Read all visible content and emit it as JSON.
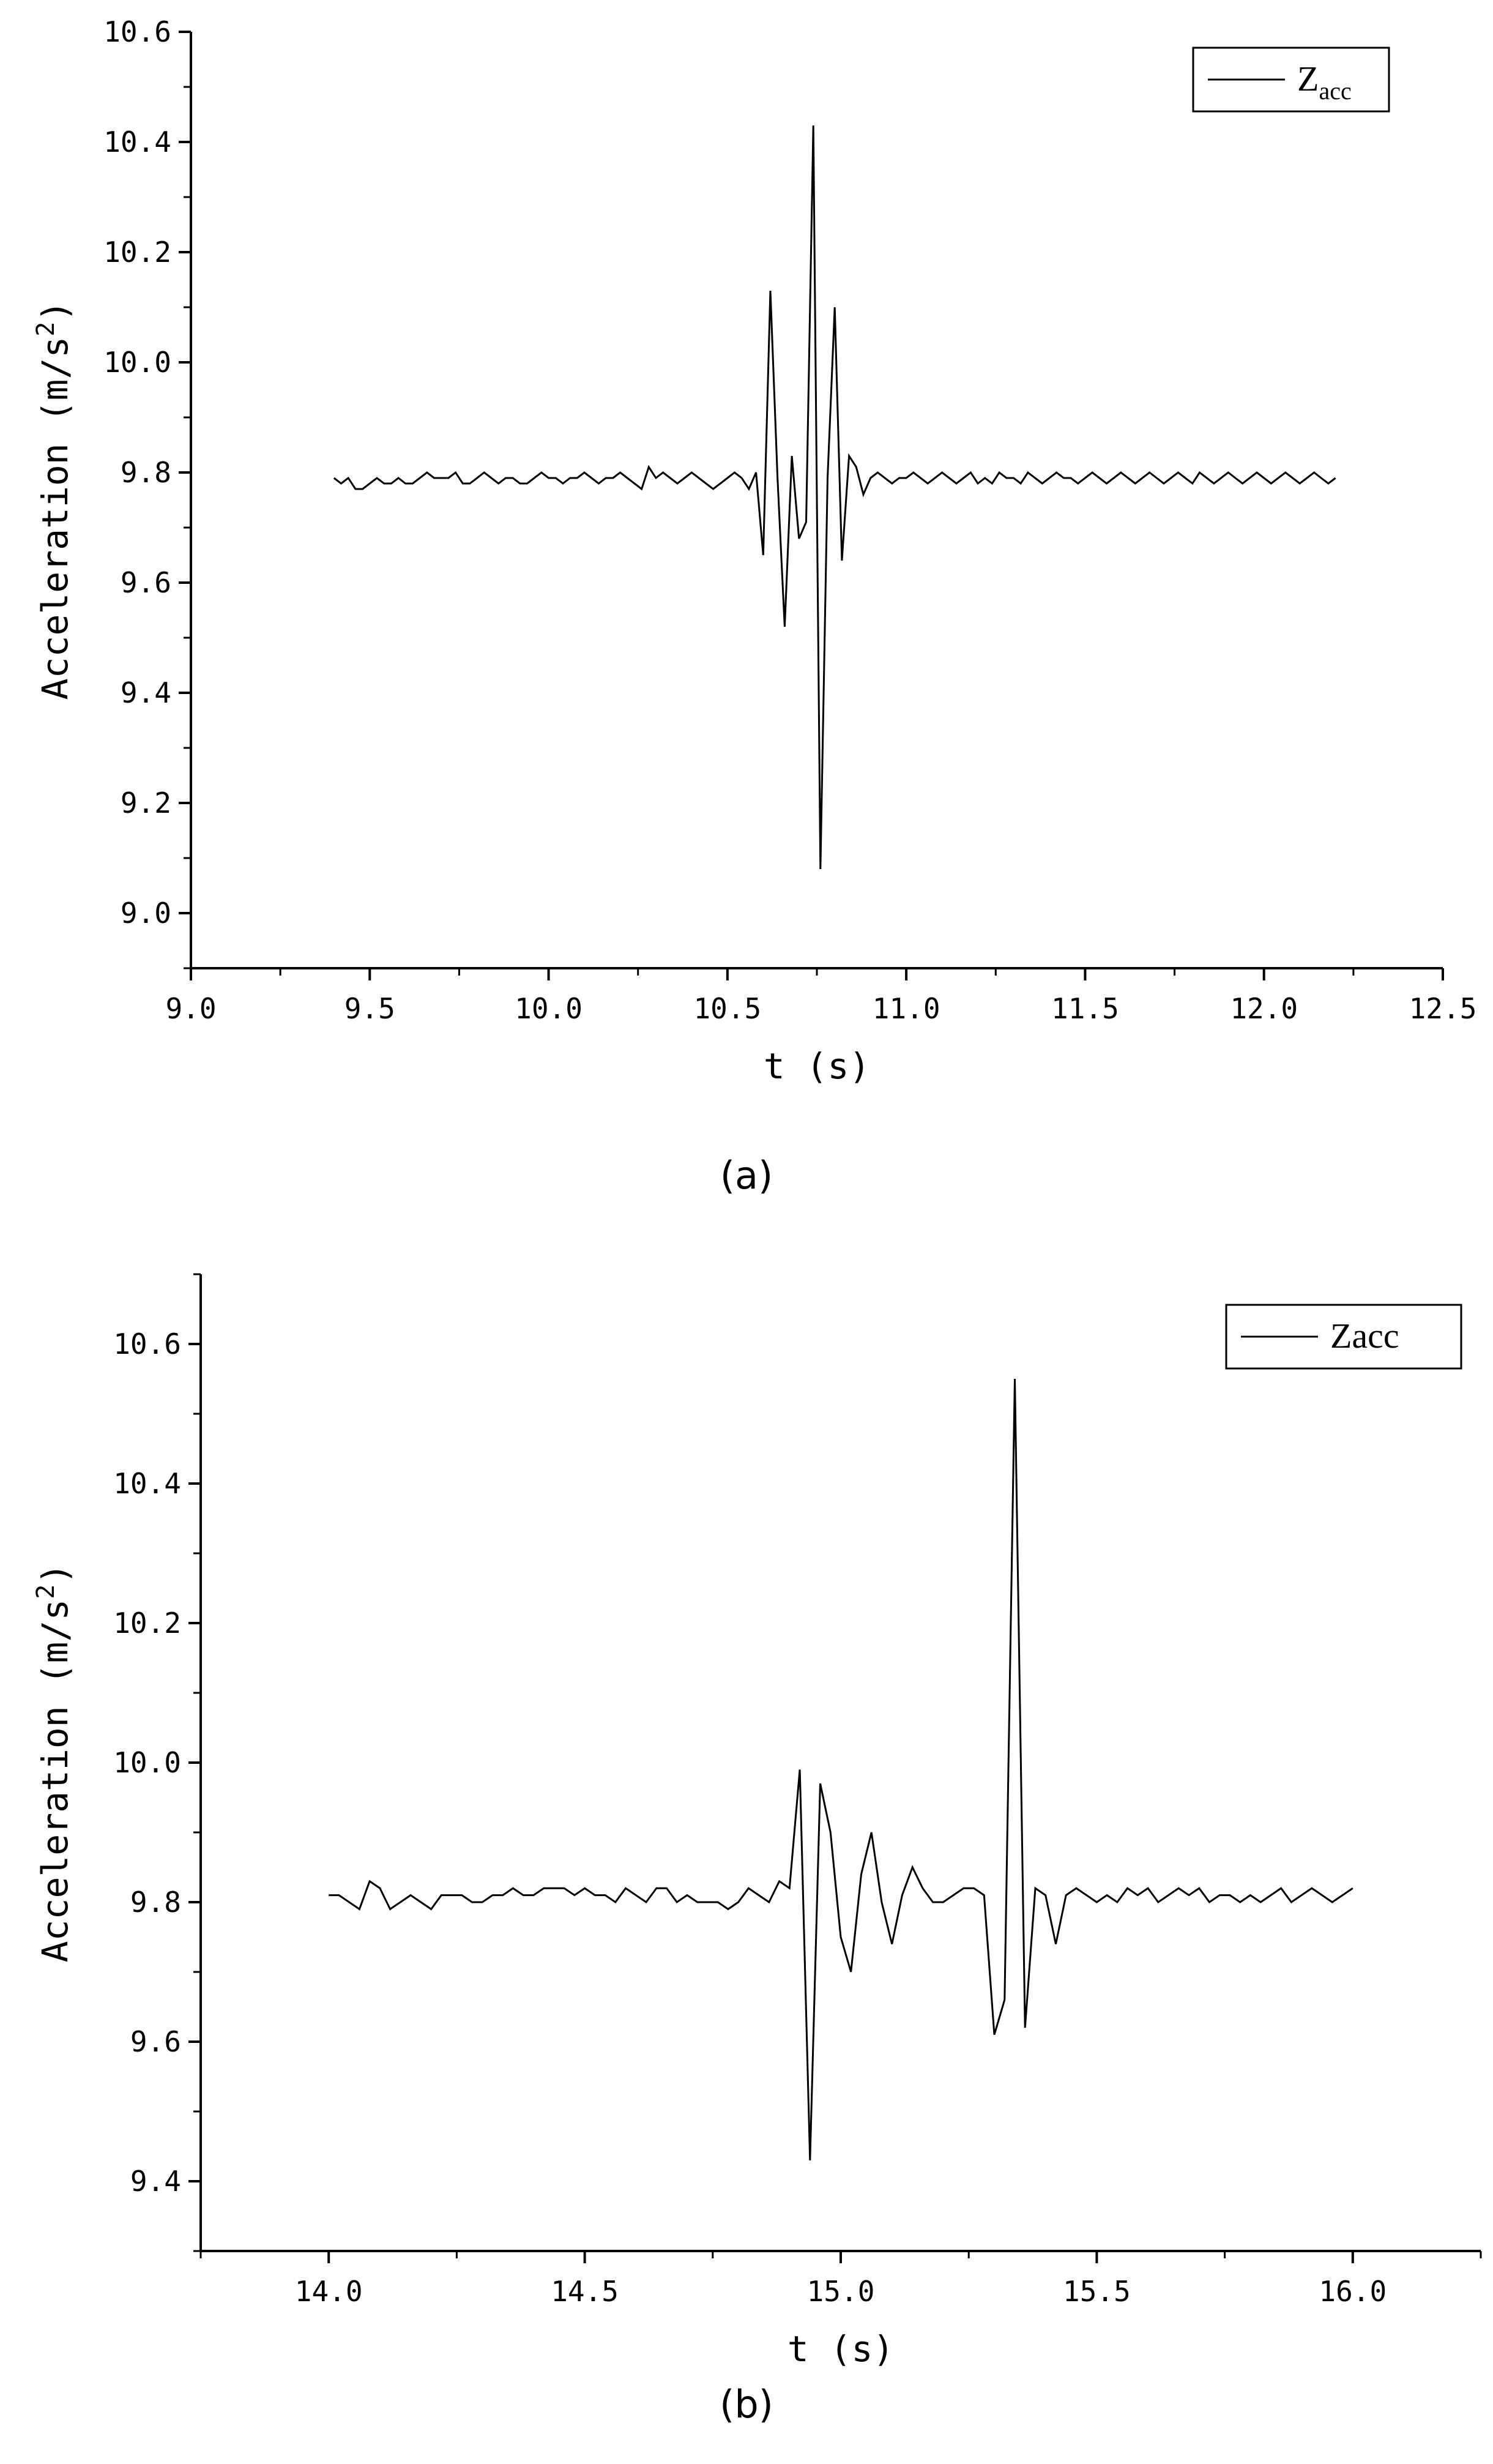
{
  "chart_data": [
    {
      "type": "line",
      "panel_label": "(a)",
      "xlabel": "t (s)",
      "ylabel": "Acceleration (m/s2)",
      "ylabel_main": "Acceleration (m/s",
      "ylabel_sup": "2",
      "ylabel_close": ")",
      "xlim": [
        9.0,
        12.5
      ],
      "ylim": [
        8.9,
        10.6
      ],
      "x_ticks": [
        "9.0",
        "9.5",
        "10.0",
        "10.5",
        "11.0",
        "11.5",
        "12.0",
        "12.5"
      ],
      "y_ticks": [
        "9.0",
        "9.2",
        "9.4",
        "9.6",
        "9.8",
        "10.0",
        "10.2",
        "10.4",
        "10.6"
      ],
      "grid": false,
      "legend_position": "top-right",
      "series": [
        {
          "name": "Zacc",
          "name_main": "Z",
          "name_sub": "acc",
          "color": "#000000",
          "x": [
            9.4,
            9.42,
            9.44,
            9.46,
            9.48,
            9.5,
            9.52,
            9.54,
            9.56,
            9.58,
            9.6,
            9.62,
            9.64,
            9.66,
            9.68,
            9.7,
            9.72,
            9.74,
            9.76,
            9.78,
            9.8,
            9.82,
            9.84,
            9.86,
            9.88,
            9.9,
            9.92,
            9.94,
            9.96,
            9.98,
            10.0,
            10.02,
            10.04,
            10.06,
            10.08,
            10.1,
            10.12,
            10.14,
            10.16,
            10.18,
            10.2,
            10.22,
            10.24,
            10.26,
            10.28,
            10.3,
            10.32,
            10.34,
            10.36,
            10.38,
            10.4,
            10.42,
            10.44,
            10.46,
            10.48,
            10.5,
            10.52,
            10.54,
            10.56,
            10.58,
            10.6,
            10.62,
            10.64,
            10.66,
            10.68,
            10.7,
            10.72,
            10.74,
            10.76,
            10.78,
            10.8,
            10.82,
            10.84,
            10.86,
            10.88,
            10.9,
            10.92,
            10.94,
            10.96,
            10.98,
            11.0,
            11.02,
            11.04,
            11.06,
            11.08,
            11.1,
            11.12,
            11.14,
            11.16,
            11.18,
            11.2,
            11.22,
            11.24,
            11.26,
            11.28,
            11.3,
            11.32,
            11.34,
            11.36,
            11.38,
            11.4,
            11.42,
            11.44,
            11.46,
            11.48,
            11.5,
            11.52,
            11.54,
            11.56,
            11.58,
            11.6,
            11.62,
            11.64,
            11.66,
            11.68,
            11.7,
            11.72,
            11.74,
            11.76,
            11.78,
            11.8,
            11.82,
            11.84,
            11.86,
            11.88,
            11.9,
            11.92,
            11.94,
            11.96,
            11.98,
            12.0,
            12.02,
            12.04,
            12.06,
            12.08,
            12.1,
            12.12,
            12.14,
            12.16,
            12.18,
            12.2
          ],
          "y": [
            9.79,
            9.78,
            9.79,
            9.77,
            9.77,
            9.78,
            9.79,
            9.78,
            9.78,
            9.79,
            9.78,
            9.78,
            9.79,
            9.8,
            9.79,
            9.79,
            9.79,
            9.8,
            9.78,
            9.78,
            9.79,
            9.8,
            9.79,
            9.78,
            9.79,
            9.79,
            9.78,
            9.78,
            9.79,
            9.8,
            9.79,
            9.79,
            9.78,
            9.79,
            9.79,
            9.8,
            9.79,
            9.78,
            9.79,
            9.79,
            9.8,
            9.79,
            9.78,
            9.77,
            9.81,
            9.79,
            9.8,
            9.79,
            9.78,
            9.79,
            9.8,
            9.79,
            9.78,
            9.77,
            9.78,
            9.79,
            9.8,
            9.79,
            9.77,
            9.8,
            9.65,
            10.13,
            9.79,
            9.52,
            9.83,
            9.68,
            9.71,
            10.43,
            9.08,
            9.79,
            10.1,
            9.64,
            9.83,
            9.81,
            9.76,
            9.79,
            9.8,
            9.79,
            9.78,
            9.79,
            9.79,
            9.8,
            9.79,
            9.78,
            9.79,
            9.8,
            9.79,
            9.78,
            9.79,
            9.8,
            9.78,
            9.79,
            9.78,
            9.8,
            9.79,
            9.79,
            9.78,
            9.8,
            9.79,
            9.78,
            9.79,
            9.8,
            9.79,
            9.79,
            9.78,
            9.79,
            9.8,
            9.79,
            9.78,
            9.79,
            9.8,
            9.79,
            9.78,
            9.79,
            9.8,
            9.79,
            9.78,
            9.79,
            9.8,
            9.79,
            9.78,
            9.8,
            9.79,
            9.78,
            9.79,
            9.8,
            9.79,
            9.78,
            9.79,
            9.8,
            9.79,
            9.78,
            9.79,
            9.8,
            9.79,
            9.78,
            9.79,
            9.8,
            9.79,
            9.78,
            9.79
          ]
        }
      ]
    },
    {
      "type": "line",
      "panel_label": "(b)",
      "xlabel": "t (s)",
      "ylabel": "Acceleration (m/s2)",
      "ylabel_main": "Acceleration (m/s",
      "ylabel_sup": "2",
      "ylabel_close": ")",
      "xlim": [
        13.75,
        16.25
      ],
      "ylim": [
        9.3,
        10.7
      ],
      "x_ticks": [
        "14.0",
        "14.5",
        "15.0",
        "15.5",
        "16.0"
      ],
      "y_ticks": [
        "9.4",
        "9.6",
        "9.8",
        "10.0",
        "10.2",
        "10.4",
        "10.6"
      ],
      "grid": false,
      "legend_position": "top-right",
      "series": [
        {
          "name": "Zacc",
          "color": "#000000",
          "x": [
            14.0,
            14.02,
            14.04,
            14.06,
            14.08,
            14.1,
            14.12,
            14.14,
            14.16,
            14.18,
            14.2,
            14.22,
            14.24,
            14.26,
            14.28,
            14.3,
            14.32,
            14.34,
            14.36,
            14.38,
            14.4,
            14.42,
            14.44,
            14.46,
            14.48,
            14.5,
            14.52,
            14.54,
            14.56,
            14.58,
            14.6,
            14.62,
            14.64,
            14.66,
            14.68,
            14.7,
            14.72,
            14.74,
            14.76,
            14.78,
            14.8,
            14.82,
            14.84,
            14.86,
            14.88,
            14.9,
            14.92,
            14.94,
            14.96,
            14.98,
            15.0,
            15.02,
            15.04,
            15.06,
            15.08,
            15.1,
            15.12,
            15.14,
            15.16,
            15.18,
            15.2,
            15.22,
            15.24,
            15.26,
            15.28,
            15.3,
            15.32,
            15.34,
            15.36,
            15.38,
            15.4,
            15.42,
            15.44,
            15.46,
            15.48,
            15.5,
            15.52,
            15.54,
            15.56,
            15.58,
            15.6,
            15.62,
            15.64,
            15.66,
            15.68,
            15.7,
            15.72,
            15.74,
            15.76,
            15.78,
            15.8,
            15.82,
            15.84,
            15.86,
            15.88,
            15.9,
            15.92,
            15.94,
            15.96,
            15.98,
            16.0
          ],
          "y": [
            9.81,
            9.81,
            9.8,
            9.79,
            9.83,
            9.82,
            9.79,
            9.8,
            9.81,
            9.8,
            9.79,
            9.81,
            9.81,
            9.81,
            9.8,
            9.8,
            9.81,
            9.81,
            9.82,
            9.81,
            9.81,
            9.82,
            9.82,
            9.82,
            9.81,
            9.82,
            9.81,
            9.81,
            9.8,
            9.82,
            9.81,
            9.8,
            9.82,
            9.82,
            9.8,
            9.81,
            9.8,
            9.8,
            9.8,
            9.79,
            9.8,
            9.82,
            9.81,
            9.8,
            9.83,
            9.82,
            9.99,
            9.43,
            9.97,
            9.9,
            9.75,
            9.7,
            9.84,
            9.9,
            9.8,
            9.74,
            9.81,
            9.85,
            9.82,
            9.8,
            9.8,
            9.81,
            9.82,
            9.82,
            9.81,
            9.61,
            9.66,
            10.55,
            9.62,
            9.82,
            9.81,
            9.74,
            9.81,
            9.82,
            9.81,
            9.8,
            9.81,
            9.8,
            9.82,
            9.81,
            9.82,
            9.8,
            9.81,
            9.82,
            9.81,
            9.82,
            9.8,
            9.81,
            9.81,
            9.8,
            9.81,
            9.8,
            9.81,
            9.82,
            9.8,
            9.81,
            9.82,
            9.81,
            9.8,
            9.81,
            9.82
          ]
        }
      ]
    }
  ]
}
